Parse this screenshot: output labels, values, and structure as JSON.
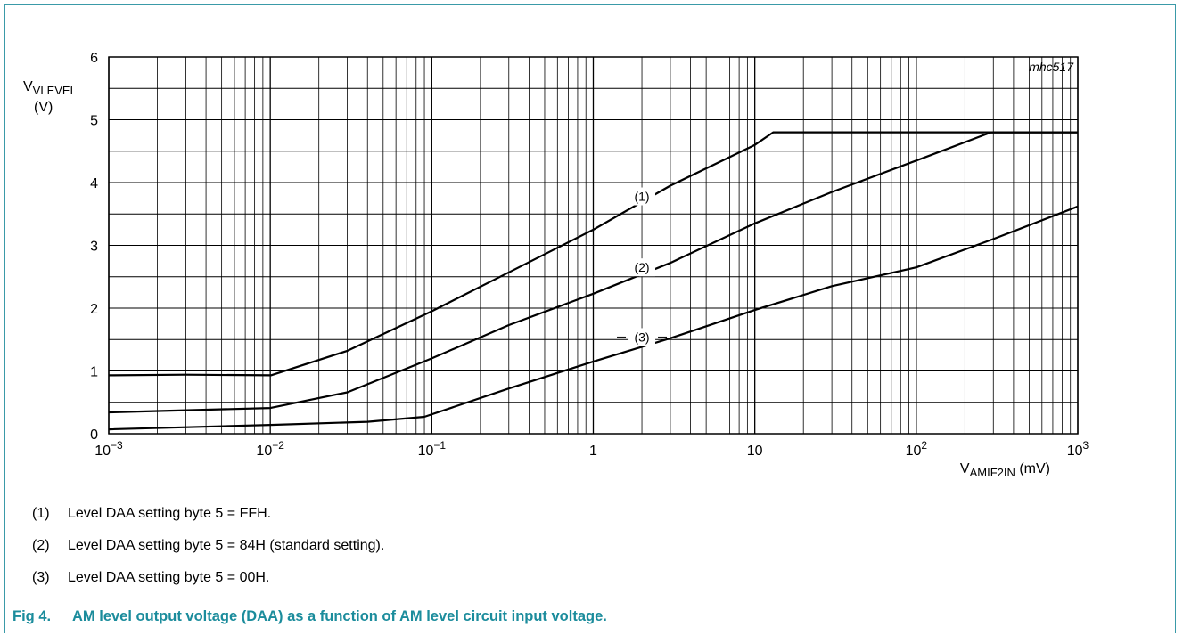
{
  "chart_data": {
    "type": "line",
    "code": "mhc517",
    "xscale": "log",
    "xlim": [
      0.001,
      1000
    ],
    "ylim": [
      0,
      6
    ],
    "grid": true,
    "ylabel": {
      "main": "V",
      "sub": "VLEVEL",
      "unit": "(V)"
    },
    "xlabel": {
      "main": "V",
      "sub": "AMIF2IN",
      "unit": " (mV)"
    },
    "yticks": [
      "0",
      "1",
      "2",
      "3",
      "4",
      "5",
      "6"
    ],
    "xticks": [
      {
        "base": "10",
        "exp": "−3"
      },
      {
        "base": "10",
        "exp": "−2"
      },
      {
        "base": "10",
        "exp": "−1"
      },
      {
        "base": "1",
        "exp": ""
      },
      {
        "base": "10",
        "exp": ""
      },
      {
        "base": "10",
        "exp": "2"
      },
      {
        "base": "10",
        "exp": "3"
      }
    ],
    "series": [
      {
        "name": "(1)",
        "x": [
          0.001,
          0.003,
          0.0101,
          0.03,
          0.1,
          0.3,
          1,
          3,
          10,
          13,
          30,
          100,
          300,
          1000
        ],
        "y": [
          0.93,
          0.94,
          0.93,
          1.32,
          1.95,
          2.57,
          3.25,
          3.95,
          4.6,
          4.8,
          4.8,
          4.8,
          4.8,
          4.8
        ]
      },
      {
        "name": "(2)",
        "x": [
          0.001,
          0.01,
          0.03,
          0.1,
          0.3,
          1,
          3,
          10,
          30,
          100,
          290,
          1000
        ],
        "y": [
          0.34,
          0.41,
          0.66,
          1.2,
          1.73,
          2.23,
          2.72,
          3.35,
          3.85,
          4.35,
          4.8,
          4.8
        ]
      },
      {
        "name": "(3)",
        "x": [
          0.001,
          0.01,
          0.04,
          0.09,
          0.3,
          1,
          3,
          10,
          30,
          100,
          300,
          1000
        ],
        "y": [
          0.07,
          0.14,
          0.19,
          0.27,
          0.72,
          1.15,
          1.52,
          1.97,
          2.35,
          2.65,
          3.1,
          3.62
        ]
      }
    ],
    "labels": [
      {
        "text": "(1)",
        "x": 2,
        "y": 3.78
      },
      {
        "text": "(2)",
        "x": 2,
        "y": 2.65
      },
      {
        "text": "(3)",
        "x": 2,
        "y": 1.54
      }
    ]
  },
  "notes": [
    {
      "num": "(1)",
      "text": "Level DAA setting byte 5 = FFH."
    },
    {
      "num": "(2)",
      "text": "Level DAA setting byte 5 = 84H (standard setting)."
    },
    {
      "num": "(3)",
      "text": "Level DAA setting byte 5 = 00H."
    }
  ],
  "caption": {
    "fig": "Fig 4.",
    "text": "AM level output voltage (DAA) as a function of AM level circuit input voltage."
  }
}
